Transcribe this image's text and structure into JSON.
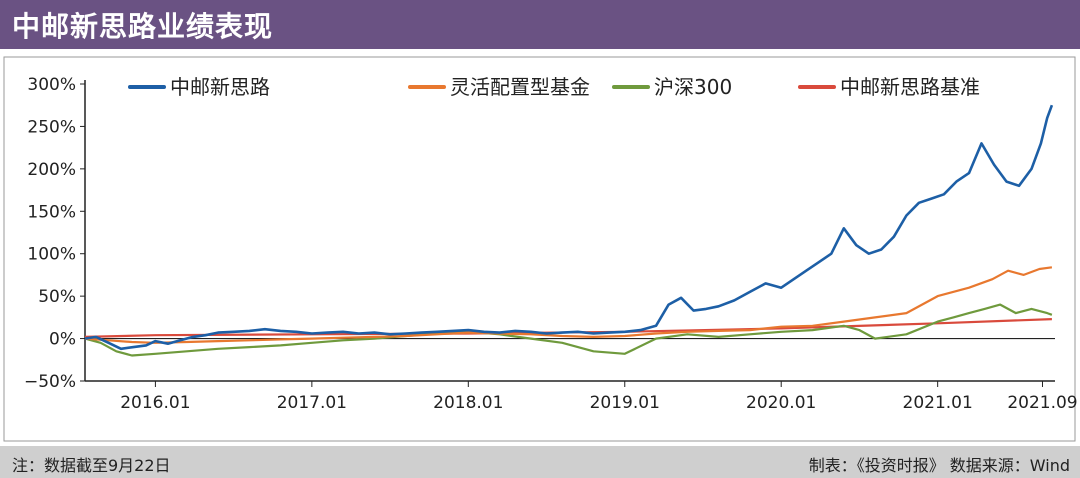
{
  "header": {
    "title": "中邮新思路业绩表现"
  },
  "footer": {
    "note": "注：数据截至9月22日",
    "source": "制表：《投资时报》 数据来源：Wind"
  },
  "colors": {
    "header_bg": "#6a5283",
    "footer_bg": "#cfcfcf",
    "series": [
      "#1d5fa6",
      "#e8782f",
      "#6f9a3d",
      "#d94a3c"
    ]
  },
  "chart_data": {
    "type": "line",
    "title": "",
    "xlabel": "",
    "ylabel": "",
    "xlim": [
      2015.55,
      2021.75
    ],
    "ylim": [
      -50,
      300
    ],
    "x_ticks": [
      {
        "x": 2016.0,
        "label": "2016.01"
      },
      {
        "x": 2017.0,
        "label": "2017.01"
      },
      {
        "x": 2018.0,
        "label": "2018.01"
      },
      {
        "x": 2019.0,
        "label": "2019.01"
      },
      {
        "x": 2020.0,
        "label": "2020.01"
      },
      {
        "x": 2021.0,
        "label": "2021.01"
      },
      {
        "x": 2021.67,
        "label": "2021.09"
      }
    ],
    "y_ticks": [
      -50,
      0,
      50,
      100,
      150,
      200,
      250,
      300
    ],
    "y_tick_labels": [
      "−50%",
      "0%",
      "50%",
      "100%",
      "150%",
      "200%",
      "250%",
      "300%"
    ],
    "grid": false,
    "legend_position": "top",
    "series": [
      {
        "name": "中邮新思路",
        "x": [
          2015.55,
          2015.62,
          2015.7,
          2015.78,
          2015.86,
          2015.94,
          2016.0,
          2016.08,
          2016.16,
          2016.24,
          2016.32,
          2016.4,
          2016.5,
          2016.6,
          2016.7,
          2016.8,
          2016.9,
          2017.0,
          2017.1,
          2017.2,
          2017.3,
          2017.4,
          2017.5,
          2017.6,
          2017.7,
          2017.8,
          2017.9,
          2018.0,
          2018.1,
          2018.2,
          2018.3,
          2018.4,
          2018.5,
          2018.6,
          2018.7,
          2018.8,
          2018.9,
          2019.0,
          2019.1,
          2019.2,
          2019.28,
          2019.36,
          2019.44,
          2019.52,
          2019.6,
          2019.7,
          2019.8,
          2019.9,
          2020.0,
          2020.08,
          2020.16,
          2020.24,
          2020.32,
          2020.4,
          2020.48,
          2020.56,
          2020.64,
          2020.72,
          2020.8,
          2020.88,
          2020.96,
          2021.04,
          2021.12,
          2021.2,
          2021.28,
          2021.36,
          2021.44,
          2021.52,
          2021.6,
          2021.66,
          2021.7,
          2021.73
        ],
        "values": [
          0,
          2,
          -5,
          -12,
          -10,
          -8,
          -3,
          -6,
          -2,
          2,
          4,
          7,
          8,
          9,
          11,
          9,
          8,
          6,
          7,
          8,
          6,
          7,
          5,
          6,
          7,
          8,
          9,
          10,
          8,
          7,
          9,
          8,
          6,
          7,
          8,
          6,
          7,
          8,
          10,
          15,
          40,
          48,
          33,
          35,
          38,
          45,
          55,
          65,
          60,
          70,
          80,
          90,
          100,
          130,
          110,
          100,
          105,
          120,
          145,
          160,
          165,
          170,
          185,
          195,
          230,
          205,
          185,
          180,
          200,
          230,
          260,
          275
        ]
      },
      {
        "name": "灵活配置型基金",
        "x": [
          2015.55,
          2015.7,
          2015.85,
          2016.0,
          2016.2,
          2016.4,
          2016.6,
          2016.8,
          2017.0,
          2017.2,
          2017.4,
          2017.6,
          2017.8,
          2018.0,
          2018.2,
          2018.4,
          2018.6,
          2018.8,
          2019.0,
          2019.2,
          2019.4,
          2019.6,
          2019.8,
          2020.0,
          2020.2,
          2020.4,
          2020.6,
          2020.8,
          2021.0,
          2021.2,
          2021.35,
          2021.45,
          2021.55,
          2021.65,
          2021.73
        ],
        "values": [
          0,
          -2,
          -4,
          -5,
          -4,
          -3,
          -2,
          -1,
          0,
          1,
          2,
          3,
          5,
          7,
          6,
          5,
          3,
          2,
          3,
          6,
          8,
          9,
          10,
          14,
          15,
          20,
          25,
          30,
          50,
          60,
          70,
          80,
          75,
          82,
          84
        ]
      },
      {
        "name": "沪深300",
        "x": [
          2015.55,
          2015.65,
          2015.75,
          2015.85,
          2016.0,
          2016.2,
          2016.4,
          2016.6,
          2016.8,
          2017.0,
          2017.2,
          2017.4,
          2017.6,
          2017.8,
          2018.0,
          2018.2,
          2018.4,
          2018.6,
          2018.8,
          2019.0,
          2019.2,
          2019.4,
          2019.6,
          2019.8,
          2020.0,
          2020.2,
          2020.4,
          2020.5,
          2020.6,
          2020.8,
          2021.0,
          2021.1,
          2021.2,
          2021.3,
          2021.4,
          2021.5,
          2021.6,
          2021.7,
          2021.73
        ],
        "values": [
          0,
          -5,
          -15,
          -20,
          -18,
          -15,
          -12,
          -10,
          -8,
          -5,
          -2,
          0,
          3,
          6,
          8,
          5,
          0,
          -5,
          -15,
          -18,
          0,
          5,
          2,
          5,
          8,
          10,
          15,
          10,
          0,
          5,
          20,
          25,
          30,
          35,
          40,
          30,
          35,
          30,
          28
        ]
      },
      {
        "name": "中邮新思路基准",
        "x": [
          2015.55,
          2016.0,
          2017.0,
          2018.0,
          2019.0,
          2020.0,
          2021.0,
          2021.73
        ],
        "values": [
          2,
          4,
          5,
          6,
          8,
          12,
          18,
          23
        ]
      }
    ]
  }
}
